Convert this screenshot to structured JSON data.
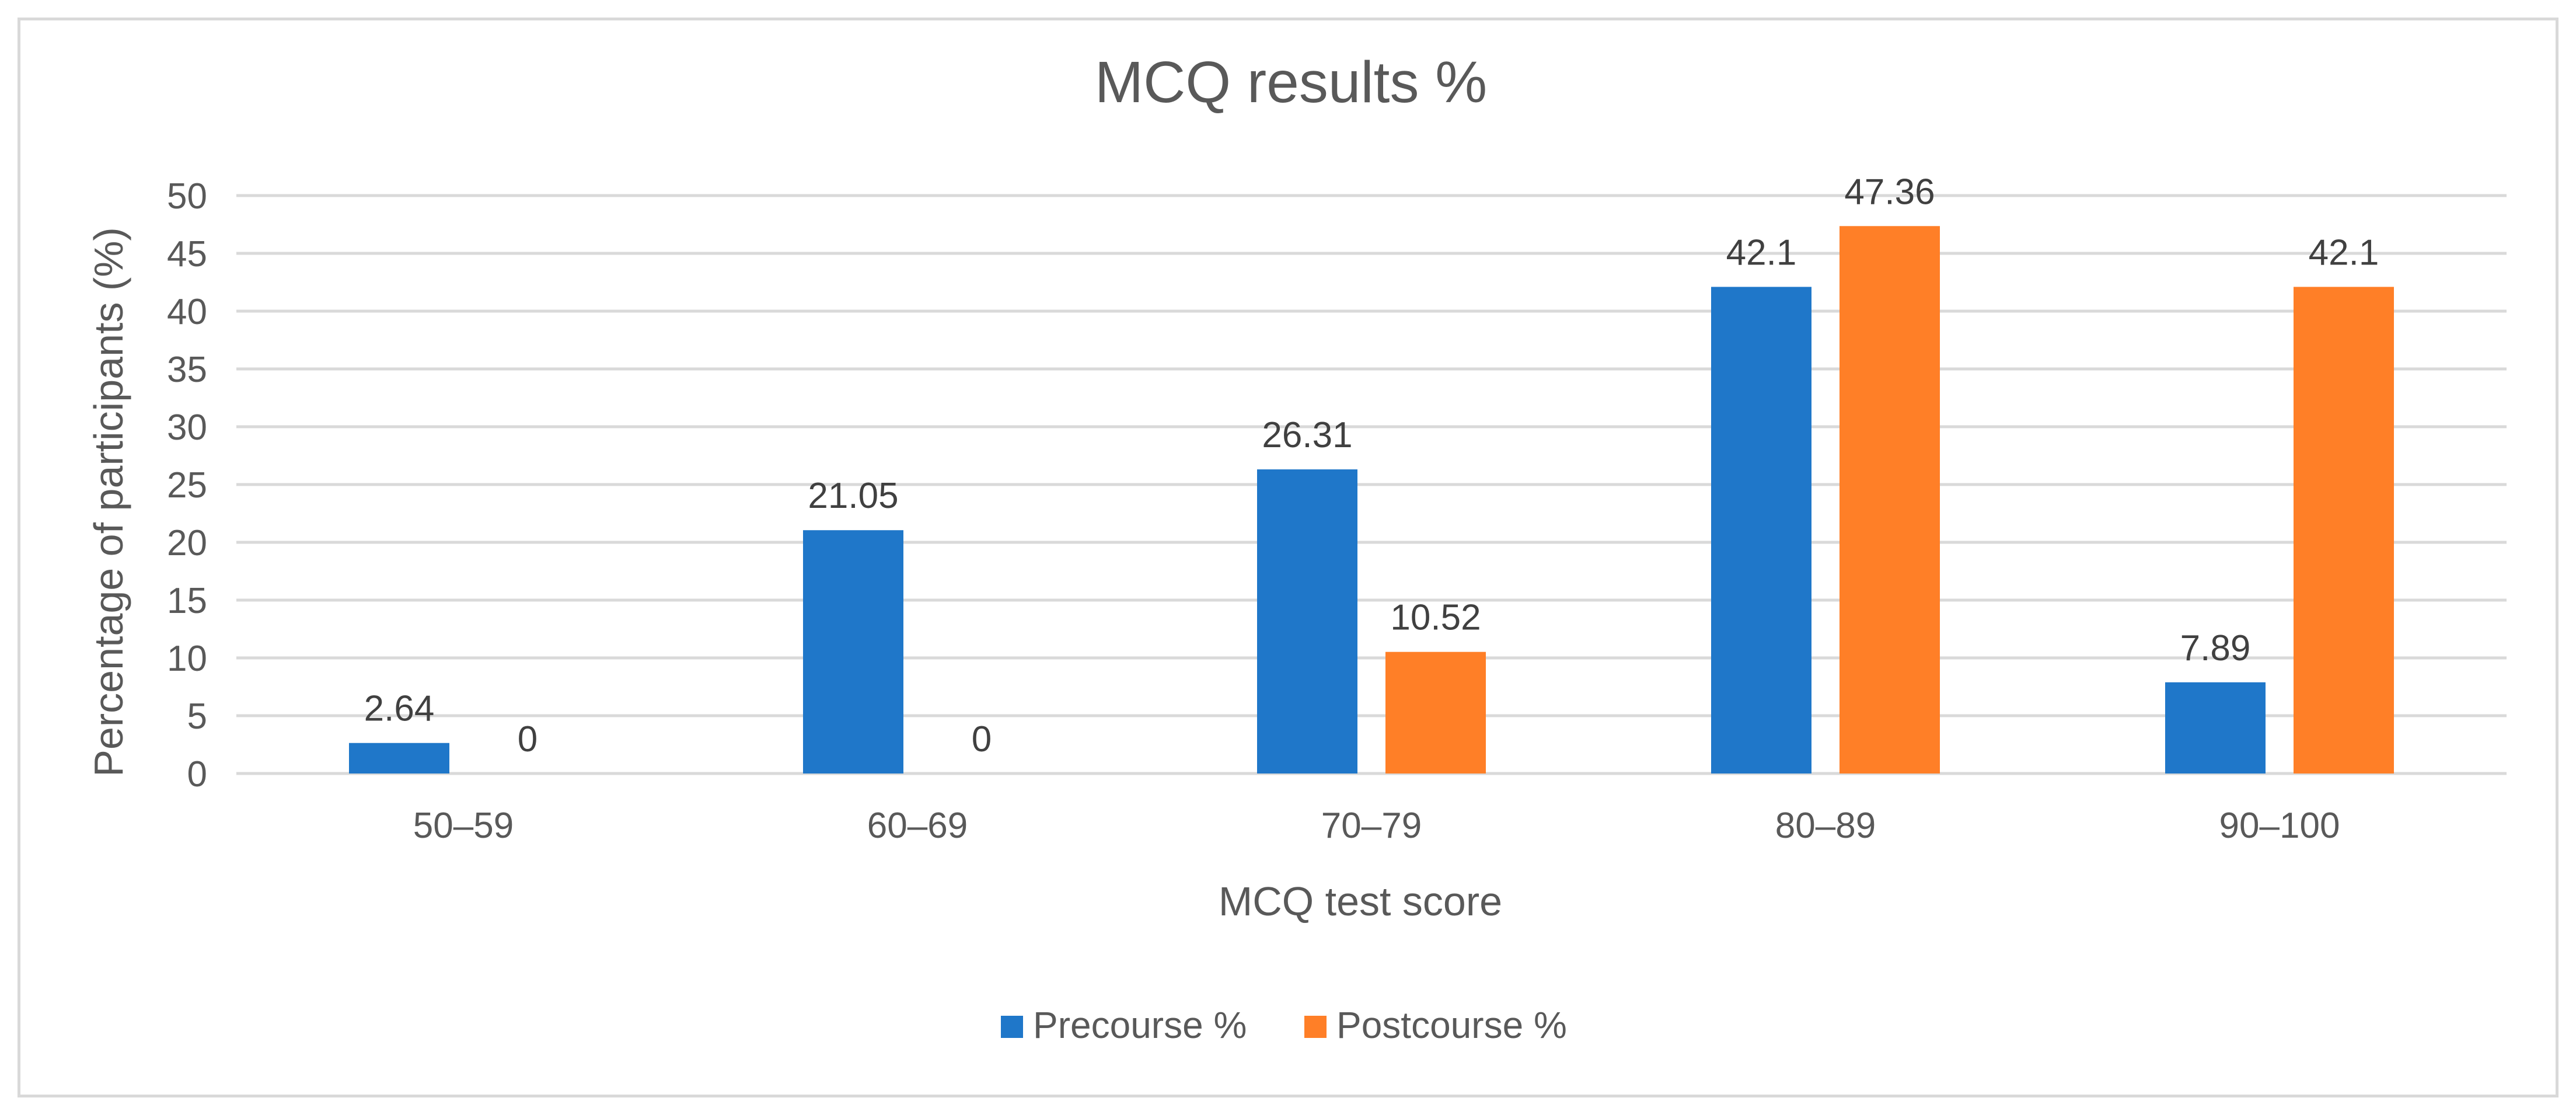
{
  "colors": {
    "precourse": "#1f77c9",
    "postcourse": "#ff7f27",
    "grid": "#d9d9d9"
  },
  "chart_data": {
    "type": "bar",
    "title": "MCQ results %",
    "xlabel": "MCQ test score",
    "ylabel": "Percentage of participants (%)",
    "categories": [
      "50–59",
      "60–69",
      "70–79",
      "80–89",
      "90–100"
    ],
    "ylim": [
      0,
      50
    ],
    "ytick_step": 5,
    "ytick_labels": [
      "0",
      "5",
      "10",
      "15",
      "20",
      "25",
      "30",
      "35",
      "40",
      "45",
      "50"
    ],
    "grid": true,
    "legend_position": "bottom",
    "series": [
      {
        "name": "Precourse %",
        "values": [
          2.64,
          21.05,
          26.31,
          42.1,
          7.89
        ],
        "labels": [
          "2.64",
          "21.05",
          "26.31",
          "42.1",
          "7.89"
        ]
      },
      {
        "name": "Postcourse %",
        "values": [
          0,
          0,
          10.52,
          47.36,
          42.1
        ],
        "labels": [
          "0",
          "0",
          "10.52",
          "47.36",
          "42.1"
        ]
      }
    ]
  }
}
